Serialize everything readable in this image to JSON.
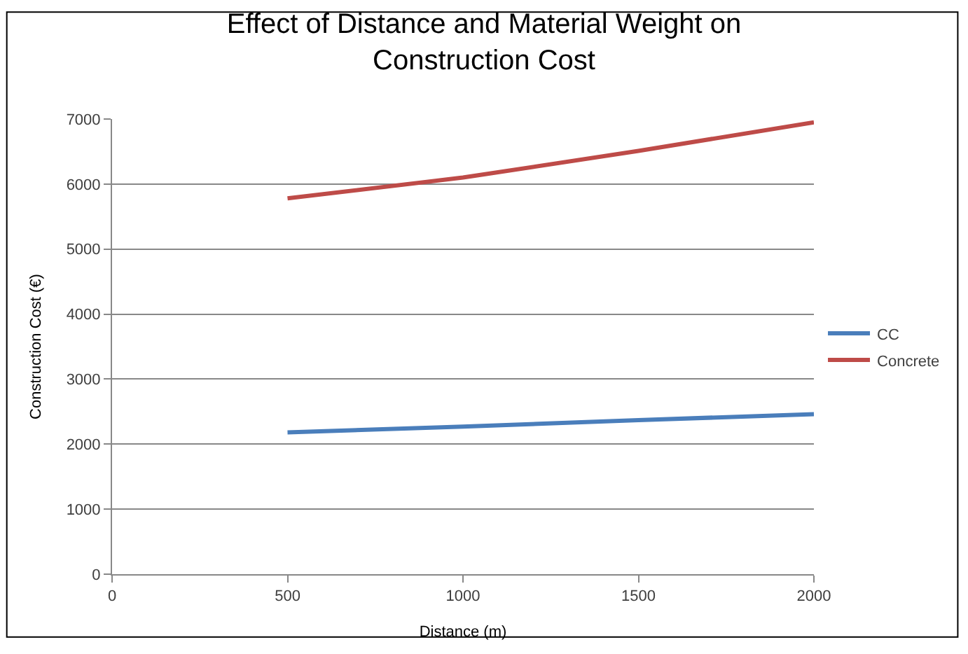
{
  "chart_data": {
    "type": "line",
    "title": "Effect of Distance and Material Weight on Construction Cost",
    "xlabel": "Distance (m)",
    "ylabel": "Construction Cost (€)",
    "x": [
      500,
      1000,
      1500,
      2000
    ],
    "series": [
      {
        "name": "CC",
        "color": "#4a7ebb",
        "values": [
          2180,
          2270,
          2370,
          2460
        ]
      },
      {
        "name": "Concrete",
        "color": "#be4b48",
        "values": [
          5780,
          6100,
          6510,
          6950
        ]
      }
    ],
    "xlim": [
      0,
      2000
    ],
    "xticks": [
      0,
      500,
      1000,
      1500,
      2000
    ],
    "ylim": [
      0,
      7000
    ],
    "yticks": [
      0,
      1000,
      2000,
      3000,
      4000,
      5000,
      6000,
      7000
    ],
    "grid": "y",
    "legend": "right",
    "marker": "none",
    "line_style": "solid"
  }
}
